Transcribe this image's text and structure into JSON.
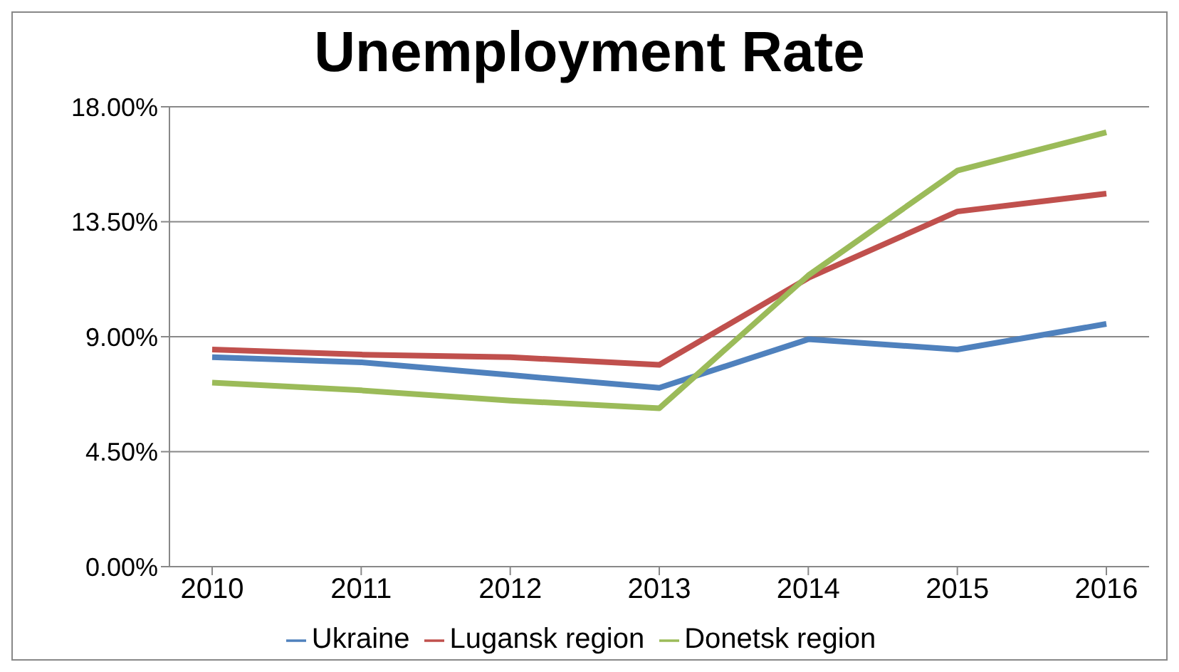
{
  "chart_data": {
    "type": "line",
    "title": "Unemployment Rate",
    "categories": [
      "2010",
      "2011",
      "2012",
      "2013",
      "2014",
      "2015",
      "2016"
    ],
    "series": [
      {
        "name": "Ukraine",
        "color": "#4f81bd",
        "values": [
          8.2,
          8.0,
          7.5,
          7.0,
          8.9,
          8.5,
          9.5
        ]
      },
      {
        "name": "Lugansk region",
        "color": "#c0504d",
        "values": [
          8.5,
          8.3,
          8.2,
          7.9,
          11.3,
          13.9,
          14.6
        ]
      },
      {
        "name": "Donetsk region",
        "color": "#9bbb59",
        "values": [
          7.2,
          6.9,
          6.5,
          6.2,
          11.4,
          15.5,
          17.0
        ]
      }
    ],
    "ylim": [
      0,
      18
    ],
    "yticks": [
      {
        "value": 0,
        "label": "0.00%"
      },
      {
        "value": 4.5,
        "label": "4.50%"
      },
      {
        "value": 9,
        "label": "9.00%"
      },
      {
        "value": 13.5,
        "label": "13.50%"
      },
      {
        "value": 18,
        "label": "18.00%"
      }
    ],
    "grid": "y",
    "legend": "bottom",
    "marker": "none",
    "line_style": "solid"
  }
}
